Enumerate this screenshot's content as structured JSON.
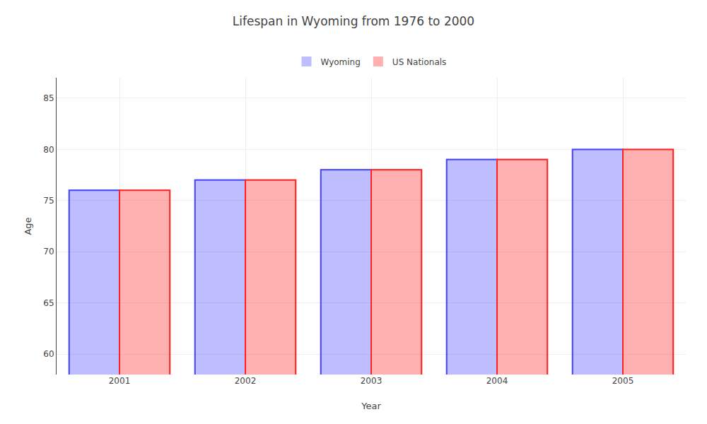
{
  "chart_data": {
    "type": "bar",
    "title": "Lifespan in Wyoming from 1976 to 2000",
    "xlabel": "Year",
    "ylabel": "Age",
    "categories": [
      "2001",
      "2002",
      "2003",
      "2004",
      "2005"
    ],
    "series": [
      {
        "name": "Wyoming",
        "color": "#4444ff",
        "values": [
          76,
          77,
          78,
          79,
          80
        ]
      },
      {
        "name": "US Nationals",
        "color": "#ff2222",
        "values": [
          76,
          77,
          78,
          79,
          80
        ]
      }
    ],
    "ylim": [
      58,
      87
    ],
    "yticks": [
      60,
      65,
      70,
      75,
      80,
      85
    ],
    "grid": true,
    "legend": "top"
  }
}
